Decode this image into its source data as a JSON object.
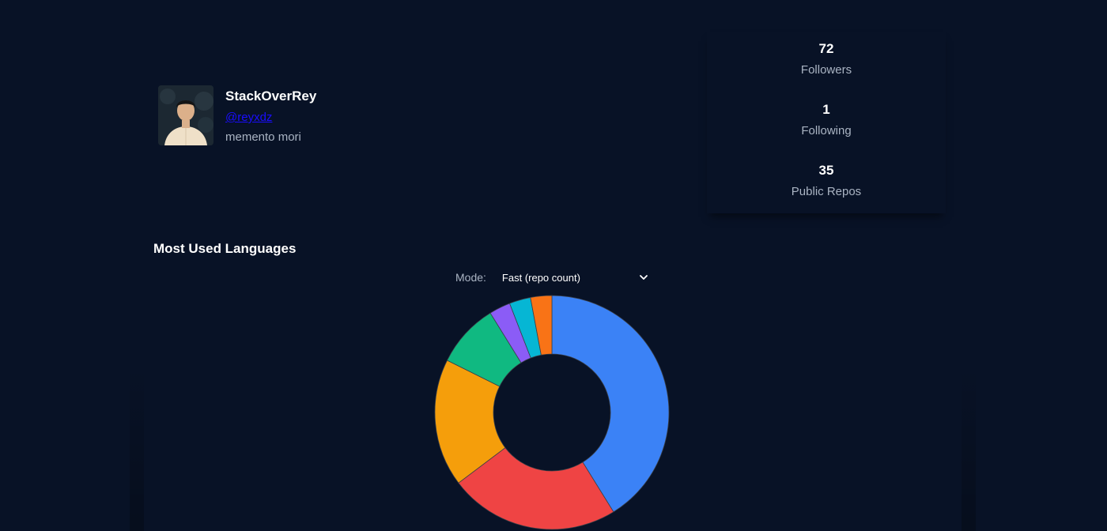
{
  "profile": {
    "name": "StackOverRey",
    "handle": "@reyxdz",
    "bio": "memento mori"
  },
  "stats": {
    "followers_value": "72",
    "followers_label": "Followers",
    "following_value": "1",
    "following_label": "Following",
    "repos_value": "35",
    "repos_label": "Public Repos"
  },
  "languages": {
    "title": "Most Used Languages",
    "mode_label": "Mode:",
    "mode_selected": "Fast (repo count)"
  },
  "chart_data": {
    "type": "pie",
    "values": [
      14,
      8,
      6,
      3,
      1,
      1,
      1
    ],
    "colors": [
      "#3b82f6",
      "#ef4444",
      "#f59e0b",
      "#10b981",
      "#8b5cf6",
      "#06b6d4",
      "#f97316"
    ]
  }
}
